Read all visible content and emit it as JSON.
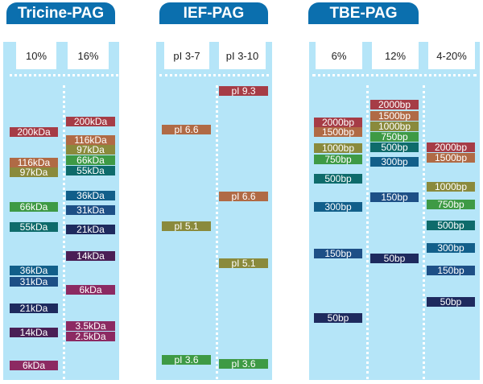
{
  "colors": {
    "red": "#a63c46",
    "brown": "#b06a45",
    "olive": "#8a8a3c",
    "green": "#3e9a45",
    "teal": "#0e6b6b",
    "blue": "#125f8a",
    "navy": "#1d4f86",
    "darknavy": "#1e2a5e",
    "purple": "#4a1f55",
    "magenta": "#8c2a62"
  },
  "panels": [
    {
      "title": "Tricine-PAG",
      "lanes": [
        {
          "label": "10%",
          "bands": [
            {
              "text": "200kDa",
              "color": "red"
            },
            {
              "text": "116kDa",
              "color": "brown"
            },
            {
              "text": "97kDa",
              "color": "olive"
            },
            {
              "text": "66kDa",
              "color": "green"
            },
            {
              "text": "55kDa",
              "color": "teal"
            },
            {
              "text": "36kDa",
              "color": "blue"
            },
            {
              "text": "31kDa",
              "color": "navy"
            },
            {
              "text": "21kDa",
              "color": "darknavy"
            },
            {
              "text": "14kDa",
              "color": "purple"
            },
            {
              "text": "6kDa",
              "color": "magenta"
            }
          ]
        },
        {
          "label": "16%",
          "bands": [
            {
              "text": "200kDa",
              "color": "red"
            },
            {
              "text": "116kDa",
              "color": "brown"
            },
            {
              "text": "97kDa",
              "color": "olive"
            },
            {
              "text": "66kDa",
              "color": "green"
            },
            {
              "text": "55kDa",
              "color": "teal"
            },
            {
              "text": "36kDa",
              "color": "blue"
            },
            {
              "text": "31kDa",
              "color": "navy"
            },
            {
              "text": "21kDa",
              "color": "darknavy"
            },
            {
              "text": "14kDa",
              "color": "purple"
            },
            {
              "text": "6kDa",
              "color": "magenta"
            },
            {
              "text": "3.5kDa",
              "color": "magenta"
            },
            {
              "text": "2.5kDa",
              "color": "magenta"
            }
          ]
        }
      ]
    },
    {
      "title": "IEF-PAG",
      "lanes": [
        {
          "label": "pI 3-7",
          "bands": [
            {
              "text": "pI 6.6",
              "color": "brown"
            },
            {
              "text": "pI 5.1",
              "color": "olive"
            },
            {
              "text": "pI 3.6",
              "color": "green"
            }
          ]
        },
        {
          "label": "pI 3-10",
          "bands": [
            {
              "text": "pI 9.3",
              "color": "red"
            },
            {
              "text": "pI 6.6",
              "color": "brown"
            },
            {
              "text": "pI 5.1",
              "color": "olive"
            },
            {
              "text": "pI 3.6",
              "color": "green"
            }
          ]
        }
      ]
    },
    {
      "title": "TBE-PAG",
      "lanes": [
        {
          "label": "6%",
          "bands": [
            {
              "text": "2000bp",
              "color": "red"
            },
            {
              "text": "1500bp",
              "color": "brown"
            },
            {
              "text": "1000bp",
              "color": "olive"
            },
            {
              "text": "750bp",
              "color": "green"
            },
            {
              "text": "500bp",
              "color": "teal"
            },
            {
              "text": "300bp",
              "color": "blue"
            },
            {
              "text": "150bp",
              "color": "navy"
            },
            {
              "text": "50bp",
              "color": "darknavy"
            }
          ]
        },
        {
          "label": "12%",
          "bands": [
            {
              "text": "2000bp",
              "color": "red"
            },
            {
              "text": "1500bp",
              "color": "brown"
            },
            {
              "text": "1000bp",
              "color": "olive"
            },
            {
              "text": "750bp",
              "color": "green"
            },
            {
              "text": "500bp",
              "color": "teal"
            },
            {
              "text": "300bp",
              "color": "blue"
            },
            {
              "text": "150bp",
              "color": "navy"
            },
            {
              "text": "50bp",
              "color": "darknavy"
            }
          ]
        },
        {
          "label": "4-20%",
          "bands": [
            {
              "text": "2000bp",
              "color": "red"
            },
            {
              "text": "1500bp",
              "color": "brown"
            },
            {
              "text": "1000bp",
              "color": "olive"
            },
            {
              "text": "750bp",
              "color": "green"
            },
            {
              "text": "500bp",
              "color": "teal"
            },
            {
              "text": "300bp",
              "color": "blue"
            },
            {
              "text": "150bp",
              "color": "navy"
            },
            {
              "text": "50bp",
              "color": "darknavy"
            }
          ]
        }
      ]
    }
  ]
}
